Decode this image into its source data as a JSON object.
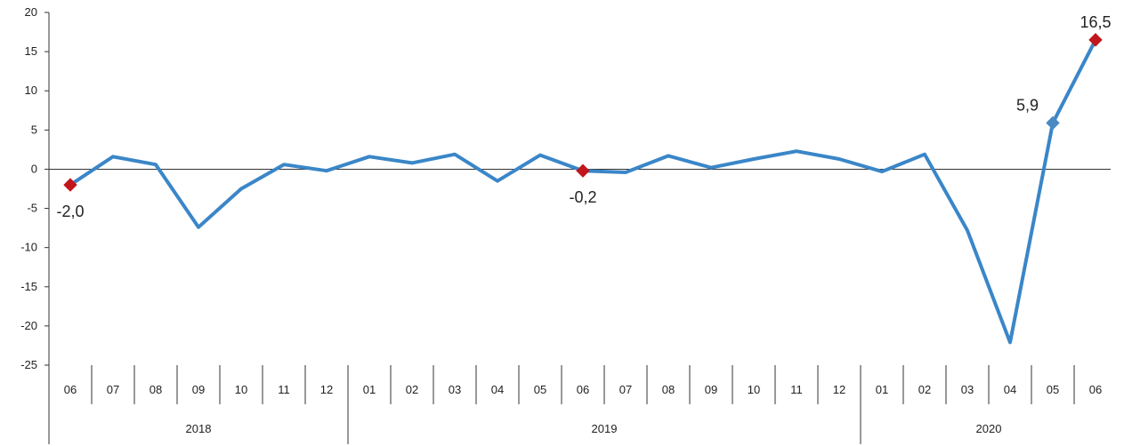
{
  "chart_data": {
    "type": "line",
    "title": "",
    "xlabel": "",
    "ylabel": "",
    "ylim": [
      -25,
      20
    ],
    "yticks": [
      20,
      15,
      10,
      5,
      0,
      -5,
      -10,
      -15,
      -20,
      -25
    ],
    "grid": false,
    "legend": "none",
    "line_color": "#3a86c8",
    "marker_highlight_color": "#c0161c",
    "marker_series_color": "#4a8ac4",
    "categories": [
      "06",
      "07",
      "08",
      "09",
      "10",
      "11",
      "12",
      "01",
      "02",
      "03",
      "04",
      "05",
      "06",
      "07",
      "08",
      "09",
      "10",
      "11",
      "12",
      "01",
      "02",
      "03",
      "04",
      "05",
      "06"
    ],
    "years": [
      {
        "label": "2018",
        "count": 7
      },
      {
        "label": "2019",
        "count": 12
      },
      {
        "label": "2020",
        "count": 6
      }
    ],
    "series": [
      {
        "values": [
          -2.0,
          1.6,
          0.6,
          -7.4,
          -2.5,
          0.6,
          -0.2,
          1.6,
          0.8,
          1.9,
          -1.5,
          1.8,
          -0.2,
          -0.4,
          1.7,
          0.2,
          1.3,
          2.3,
          1.3,
          -0.3,
          1.9,
          -7.8,
          -22.1,
          5.9,
          16.5
        ]
      }
    ],
    "annotations": [
      {
        "index": 0,
        "text": "-2,0",
        "marker": "highlight",
        "position": "below"
      },
      {
        "index": 12,
        "text": "-0,2",
        "marker": "highlight",
        "position": "below"
      },
      {
        "index": 23,
        "text": "5,9",
        "marker": "series",
        "position": "left"
      },
      {
        "index": 24,
        "text": "16,5",
        "marker": "highlight",
        "position": "above"
      }
    ]
  }
}
